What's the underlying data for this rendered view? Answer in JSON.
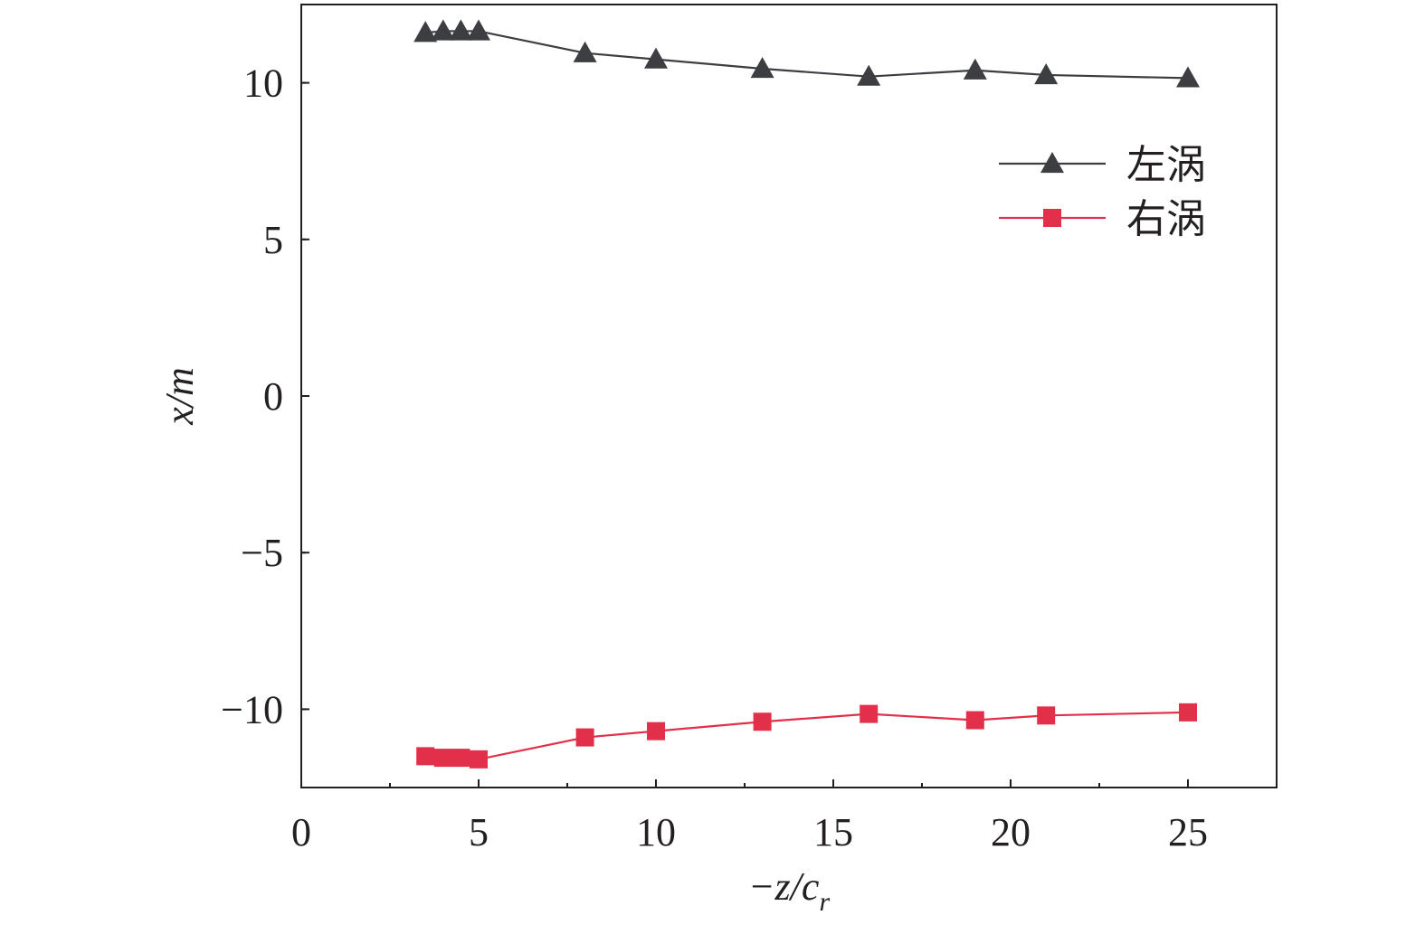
{
  "chart_data": {
    "type": "line",
    "xlabel": "−z/c",
    "xlabel_sub": "r",
    "ylabel": "x/m",
    "xlim": [
      0,
      27.5
    ],
    "ylim": [
      -12.5,
      12.5
    ],
    "xticks": [
      0,
      5,
      10,
      15,
      20,
      25
    ],
    "xtick_labels": [
      "0",
      "5",
      "10",
      "15",
      "20",
      "25"
    ],
    "yticks": [
      -10,
      -5,
      0,
      5,
      10
    ],
    "ytick_labels": [
      "−10",
      "−5",
      "0",
      "5",
      "10"
    ],
    "grid": false,
    "legend_position": "top-right",
    "series": [
      {
        "name": "左涡",
        "color": "#3d3e42",
        "marker": "triangle",
        "x": [
          3.5,
          4,
          4.5,
          5,
          8,
          10,
          13,
          16,
          19,
          21,
          25
        ],
        "y": [
          11.6,
          11.65,
          11.65,
          11.65,
          10.95,
          10.75,
          10.45,
          10.2,
          10.4,
          10.25,
          10.15
        ]
      },
      {
        "name": "右涡",
        "color": "#e2304a",
        "marker": "square",
        "x": [
          3.5,
          4,
          4.5,
          5,
          8,
          10,
          13,
          16,
          19,
          21,
          25
        ],
        "y": [
          -11.5,
          -11.55,
          -11.55,
          -11.6,
          -10.9,
          -10.7,
          -10.4,
          -10.15,
          -10.35,
          -10.2,
          -10.1
        ]
      }
    ]
  }
}
